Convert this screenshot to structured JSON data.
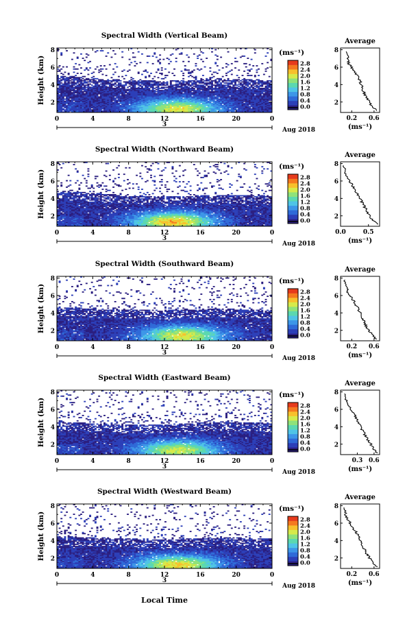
{
  "figure": {
    "panels": [
      {
        "title": "Spectral Width (Vertical Beam)"
      },
      {
        "title": "Spectral Width (Northward Beam)"
      },
      {
        "title": "Spectral Width (Southward Beam)"
      },
      {
        "title": "Spectral Width (Eastward Beam)"
      },
      {
        "title": "Spectral Width (Westward Beam)"
      }
    ],
    "ylabel": "Height (km)",
    "y_ticks": [
      "2",
      "4",
      "6",
      "8"
    ],
    "x_ticks": [
      "0",
      "4",
      "8",
      "12",
      "16",
      "20",
      "0"
    ],
    "date_tick": "3",
    "date_label": "Aug 2018",
    "xlabel": "Local Time",
    "cbar_unit": "(ms⁻¹)",
    "cbar_ticks": [
      "0.0",
      "0.4",
      "0.8",
      "1.2",
      "1.6",
      "2.0",
      "2.4",
      "2.8"
    ],
    "avg_title": "Average",
    "avg_unit": "(ms⁻¹)",
    "avg_x_ticks": [
      [
        "0.2",
        "0.6"
      ],
      [
        "0.0",
        "0.5"
      ],
      [
        "0.2",
        "0.6"
      ],
      [
        "0.3",
        "0.6"
      ],
      [
        "0.2",
        "0.6"
      ]
    ],
    "avg_y_ticks": [
      "2",
      "4",
      "6",
      "8"
    ]
  },
  "colors": {
    "colormap": [
      "#2b1f80",
      "#2c3fb8",
      "#2f6ad8",
      "#3d96e8",
      "#4fc4e6",
      "#5bd8b0",
      "#8fe27a",
      "#d6ea4a",
      "#f7c02c",
      "#f5791f",
      "#e63b1c"
    ],
    "background": "#ffffff",
    "line": "#000000"
  },
  "chart_data": [
    {
      "type": "heatmap",
      "title": "Spectral Width (Vertical Beam)",
      "xlabel": "",
      "ylabel": "Height (km)",
      "xlim": [
        0,
        24
      ],
      "ylim": [
        0.8,
        8.2
      ],
      "clim": [
        0.0,
        2.8
      ],
      "layer_top_km": [
        [
          0,
          5.0
        ],
        [
          6,
          4.6
        ],
        [
          12,
          4.4
        ],
        [
          18,
          4.7
        ],
        [
          24,
          4.5
        ]
      ],
      "peak": {
        "time": 13.5,
        "height": 1.2,
        "value": 2.0
      },
      "avg_profile": {
        "type": "line",
        "xlim": [
          0.0,
          0.7
        ],
        "ylim": [
          0.8,
          8.2
        ],
        "x": [
          0.65,
          0.55,
          0.5,
          0.44,
          0.4,
          0.37,
          0.34,
          0.28,
          0.22,
          0.15,
          0.13,
          0.1
        ],
        "y": [
          1.0,
          1.6,
          2.2,
          2.8,
          3.4,
          4.0,
          4.6,
          5.2,
          5.8,
          6.4,
          7.0,
          7.8
        ]
      }
    },
    {
      "type": "heatmap",
      "title": "Spectral Width (Northward Beam)",
      "xlabel": "",
      "ylabel": "Height (km)",
      "xlim": [
        0,
        24
      ],
      "ylim": [
        0.8,
        8.2
      ],
      "clim": [
        0.0,
        2.8
      ],
      "layer_top_km": [
        [
          0,
          4.9
        ],
        [
          6,
          4.5
        ],
        [
          12,
          4.2
        ],
        [
          18,
          4.4
        ],
        [
          24,
          4.3
        ]
      ],
      "peak": {
        "time": 13.0,
        "height": 1.3,
        "value": 2.2
      },
      "avg_profile": {
        "type": "line",
        "xlim": [
          0.0,
          0.7
        ],
        "ylim": [
          0.8,
          8.2
        ],
        "x": [
          0.66,
          0.57,
          0.5,
          0.45,
          0.4,
          0.35,
          0.3,
          0.24,
          0.18,
          0.12,
          0.08,
          0.05
        ],
        "y": [
          1.0,
          1.6,
          2.2,
          2.8,
          3.4,
          4.0,
          4.6,
          5.2,
          5.8,
          6.4,
          7.0,
          7.8
        ]
      }
    },
    {
      "type": "heatmap",
      "title": "Spectral Width (Southward Beam)",
      "xlabel": "",
      "ylabel": "Height (km)",
      "xlim": [
        0,
        24
      ],
      "ylim": [
        0.8,
        8.2
      ],
      "clim": [
        0.0,
        2.8
      ],
      "layer_top_km": [
        [
          0,
          4.7
        ],
        [
          6,
          4.4
        ],
        [
          12,
          4.3
        ],
        [
          18,
          4.5
        ],
        [
          24,
          4.3
        ]
      ],
      "peak": {
        "time": 14.0,
        "height": 1.4,
        "value": 2.0
      },
      "avg_profile": {
        "type": "line",
        "xlim": [
          0.0,
          0.7
        ],
        "ylim": [
          0.8,
          8.2
        ],
        "x": [
          0.64,
          0.55,
          0.48,
          0.43,
          0.39,
          0.35,
          0.31,
          0.25,
          0.19,
          0.13,
          0.1,
          0.08
        ],
        "y": [
          1.0,
          1.6,
          2.2,
          2.8,
          3.4,
          4.0,
          4.6,
          5.2,
          5.8,
          6.4,
          7.0,
          7.8
        ]
      }
    },
    {
      "type": "heatmap",
      "title": "Spectral Width (Eastward Beam)",
      "xlabel": "",
      "ylabel": "Height (km)",
      "xlim": [
        0,
        24
      ],
      "ylim": [
        0.8,
        8.2
      ],
      "clim": [
        0.0,
        2.8
      ],
      "layer_top_km": [
        [
          0,
          4.6
        ],
        [
          6,
          4.3
        ],
        [
          12,
          4.2
        ],
        [
          18,
          4.6
        ],
        [
          24,
          4.4
        ]
      ],
      "peak": {
        "time": 13.5,
        "height": 1.3,
        "value": 1.9
      },
      "avg_profile": {
        "type": "line",
        "xlim": [
          0.0,
          0.7
        ],
        "ylim": [
          0.8,
          8.2
        ],
        "x": [
          0.65,
          0.58,
          0.52,
          0.46,
          0.41,
          0.36,
          0.31,
          0.26,
          0.2,
          0.14,
          0.1,
          0.07
        ],
        "y": [
          1.0,
          1.6,
          2.2,
          2.8,
          3.4,
          4.0,
          4.6,
          5.2,
          5.8,
          6.4,
          7.0,
          7.8
        ]
      }
    },
    {
      "type": "heatmap",
      "title": "Spectral Width (Westward Beam)",
      "xlabel": "Local Time",
      "ylabel": "Height (km)",
      "xlim": [
        0,
        24
      ],
      "ylim": [
        0.8,
        8.2
      ],
      "clim": [
        0.0,
        2.8
      ],
      "layer_top_km": [
        [
          0,
          4.5
        ],
        [
          6,
          4.3
        ],
        [
          12,
          4.1
        ],
        [
          18,
          4.4
        ],
        [
          24,
          4.2
        ]
      ],
      "peak": {
        "time": 13.5,
        "height": 1.2,
        "value": 2.1
      },
      "avg_profile": {
        "type": "line",
        "xlim": [
          0.0,
          0.7
        ],
        "ylim": [
          0.8,
          8.2
        ],
        "x": [
          0.64,
          0.56,
          0.5,
          0.44,
          0.4,
          0.36,
          0.31,
          0.25,
          0.19,
          0.13,
          0.09,
          0.06
        ],
        "y": [
          1.0,
          1.6,
          2.2,
          2.8,
          3.4,
          4.0,
          4.6,
          5.2,
          5.8,
          6.4,
          7.0,
          7.8
        ]
      }
    }
  ]
}
